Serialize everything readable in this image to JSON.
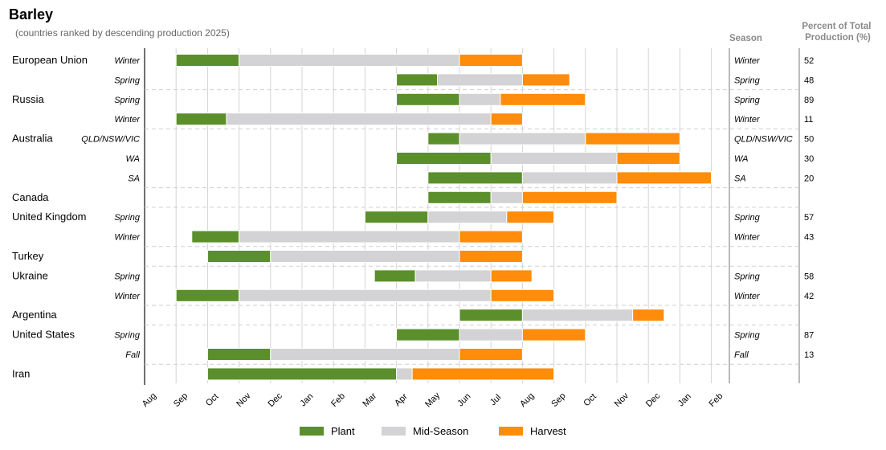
{
  "chart_data": {
    "type": "gantt",
    "title": "Barley",
    "subtitle": "(countries ranked by descending production 2025)",
    "months": [
      "Aug",
      "Sep",
      "Oct",
      "Nov",
      "Dec",
      "Jan",
      "Feb",
      "Mar",
      "Apr",
      "May",
      "Jun",
      "Jul",
      "Aug",
      "Sep",
      "Oct",
      "Nov",
      "Dec",
      "Jan",
      "Feb"
    ],
    "column_headers": {
      "season": "Season",
      "percent": "Percent of Total Production (%)"
    },
    "legend": [
      {
        "name": "Plant",
        "color": "#5b8f2b"
      },
      {
        "name": "Mid-Season",
        "color": "#d3d2d4"
      },
      {
        "name": "Harvest",
        "color": "#ff8c0a"
      }
    ],
    "rows": [
      {
        "country": "European Union",
        "season": "Winter",
        "right_season": "Winter",
        "percent": "52",
        "plant": [
          1.0,
          3.0
        ],
        "mid": [
          3.0,
          10.0
        ],
        "harvest": [
          10.0,
          12.0
        ]
      },
      {
        "country": "",
        "season": "Spring",
        "right_season": "Spring",
        "percent": "48",
        "plant": [
          8.0,
          9.3
        ],
        "mid": [
          9.3,
          12.0
        ],
        "harvest": [
          12.0,
          13.5
        ]
      },
      {
        "country": "Russia",
        "season": "Spring",
        "right_season": "Spring",
        "percent": "89",
        "plant": [
          8.0,
          10.0
        ],
        "mid": [
          10.0,
          11.3
        ],
        "harvest": [
          11.3,
          14.0
        ]
      },
      {
        "country": "",
        "season": "Winter",
        "right_season": "Winter",
        "percent": "11",
        "plant": [
          1.0,
          2.6
        ],
        "mid": [
          2.6,
          11.0
        ],
        "harvest": [
          11.0,
          12.0
        ]
      },
      {
        "country": "Australia",
        "season": "QLD/NSW/VIC",
        "right_season": "QLD/NSW/VIC",
        "percent": "50",
        "plant": [
          9.0,
          10.0
        ],
        "mid": [
          10.0,
          14.0
        ],
        "harvest": [
          14.0,
          17.0
        ]
      },
      {
        "country": "",
        "season": "WA",
        "right_season": "WA",
        "percent": "30",
        "plant": [
          8.0,
          11.0
        ],
        "mid": [
          11.0,
          15.0
        ],
        "harvest": [
          15.0,
          17.0
        ]
      },
      {
        "country": "",
        "season": "SA",
        "right_season": "SA",
        "percent": "20",
        "plant": [
          9.0,
          12.0
        ],
        "mid": [
          12.0,
          15.0
        ],
        "harvest": [
          15.0,
          18.0
        ]
      },
      {
        "country": "Canada",
        "season": "",
        "right_season": "",
        "percent": "",
        "plant": [
          9.0,
          11.0
        ],
        "mid": [
          11.0,
          12.0
        ],
        "harvest": [
          12.0,
          15.0
        ]
      },
      {
        "country": "United Kingdom",
        "season": "Spring",
        "right_season": "Spring",
        "percent": "57",
        "plant": [
          7.0,
          9.0
        ],
        "mid": [
          9.0,
          11.5
        ],
        "harvest": [
          11.5,
          13.0
        ]
      },
      {
        "country": "",
        "season": "Winter",
        "right_season": "Winter",
        "percent": "43",
        "plant": [
          1.5,
          3.0
        ],
        "mid": [
          3.0,
          10.0
        ],
        "harvest": [
          10.0,
          12.0
        ]
      },
      {
        "country": "Turkey",
        "season": "",
        "right_season": "",
        "percent": "",
        "plant": [
          2.0,
          4.0
        ],
        "mid": [
          4.0,
          10.0
        ],
        "harvest": [
          10.0,
          12.0
        ]
      },
      {
        "country": "Ukraine",
        "season": "Spring",
        "right_season": "Spring",
        "percent": "58",
        "plant": [
          7.3,
          8.6
        ],
        "mid": [
          8.6,
          11.0
        ],
        "harvest": [
          11.0,
          12.3
        ]
      },
      {
        "country": "",
        "season": "Winter",
        "right_season": "Winter",
        "percent": "42",
        "plant": [
          1.0,
          3.0
        ],
        "mid": [
          3.0,
          11.0
        ],
        "harvest": [
          11.0,
          13.0
        ]
      },
      {
        "country": "Argentina",
        "season": "",
        "right_season": "",
        "percent": "",
        "plant": [
          10.0,
          12.0
        ],
        "mid": [
          12.0,
          15.5
        ],
        "harvest": [
          15.5,
          16.5
        ]
      },
      {
        "country": "United States",
        "season": "Spring",
        "right_season": "Spring",
        "percent": "87",
        "plant": [
          8.0,
          10.0
        ],
        "mid": [
          10.0,
          12.0
        ],
        "harvest": [
          12.0,
          14.0
        ]
      },
      {
        "country": "",
        "season": "Fall",
        "right_season": "Fall",
        "percent": "13",
        "plant": [
          2.0,
          4.0
        ],
        "mid": [
          4.0,
          10.0
        ],
        "harvest": [
          10.0,
          12.0
        ]
      },
      {
        "country": "Iran",
        "season": "",
        "right_season": "",
        "percent": "",
        "plant": [
          2.0,
          8.0
        ],
        "mid": [
          8.0,
          8.5
        ],
        "harvest": [
          8.5,
          13.0
        ]
      }
    ]
  }
}
